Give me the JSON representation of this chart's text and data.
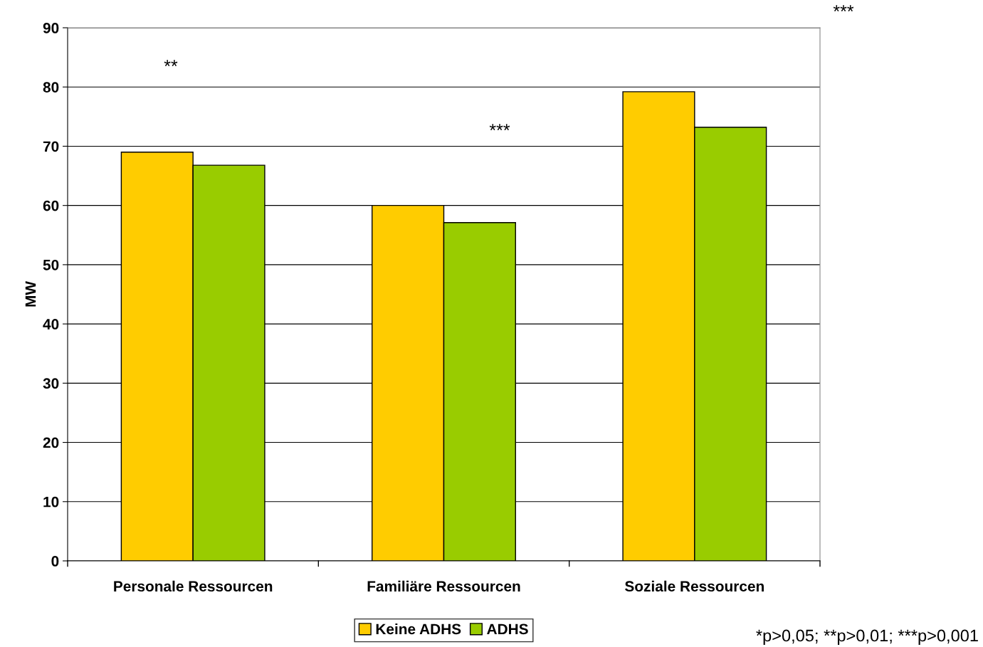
{
  "chart_data": {
    "type": "bar",
    "ylabel": "MW",
    "categories": [
      "Personale Ressourcen",
      "Familiäre Ressourcen",
      "Soziale Ressourcen"
    ],
    "series": [
      {
        "name": "Keine ADHS",
        "color": "#ffcc00",
        "values": [
          69.0,
          60.0,
          79.2
        ]
      },
      {
        "name": "ADHS",
        "color": "#99cc00",
        "values": [
          66.8,
          57.1,
          73.2
        ]
      }
    ],
    "ylim": [
      0,
      90
    ],
    "yticks": [
      0,
      10,
      20,
      30,
      40,
      50,
      60,
      70,
      80,
      90
    ],
    "grid": "y",
    "legend": "bottom",
    "annotations": [
      "**",
      "***",
      "***",
      "*p>0,05; **p>0,01; ***p>0,001"
    ]
  }
}
